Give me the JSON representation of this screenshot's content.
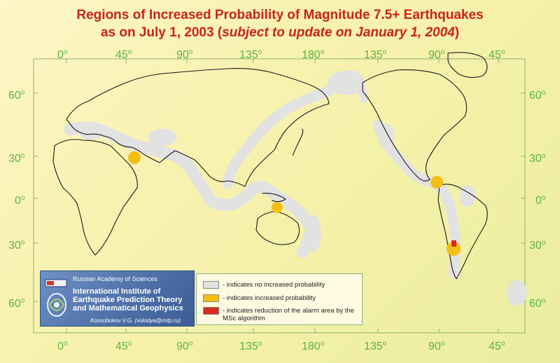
{
  "title": {
    "line1": "Regions of Increased Probability of Magnitude 7.5+ Earthquakes",
    "line2_prefix": "as on July 1, 2003 (",
    "line2_italic": "subject to update on January 1, 2004",
    "line2_suffix": ")"
  },
  "degree_symbol": "o",
  "longitude_labels": [
    "0",
    "45",
    "90",
    "135",
    "180",
    "135",
    "90",
    "45"
  ],
  "latitude_labels": [
    "60",
    "30",
    "0",
    "30",
    "60"
  ],
  "legend": {
    "items": [
      {
        "text": "- indicates no increased probability",
        "color": "#e2e2e2"
      },
      {
        "text": "- indicates increased probability",
        "color": "#f5bf12"
      },
      {
        "text": "- indicates reduction of the alarm area by the MSc algorithm",
        "color": "#d62a1c"
      }
    ]
  },
  "institution": {
    "academy": "Russian Academy of Sciences",
    "name": "International Institute of Earthquake Prediction Theory and Mathematical Geophysics",
    "author": "Kossobokov V.G. (volodya@mitp.ru)"
  },
  "colors": {
    "title": "#c8241c",
    "ticks": "#5cb347",
    "no_increase": "#e2e2e2",
    "increased": "#f5bf12",
    "reduced": "#d62a1c",
    "frame": "#8fb07a"
  }
}
